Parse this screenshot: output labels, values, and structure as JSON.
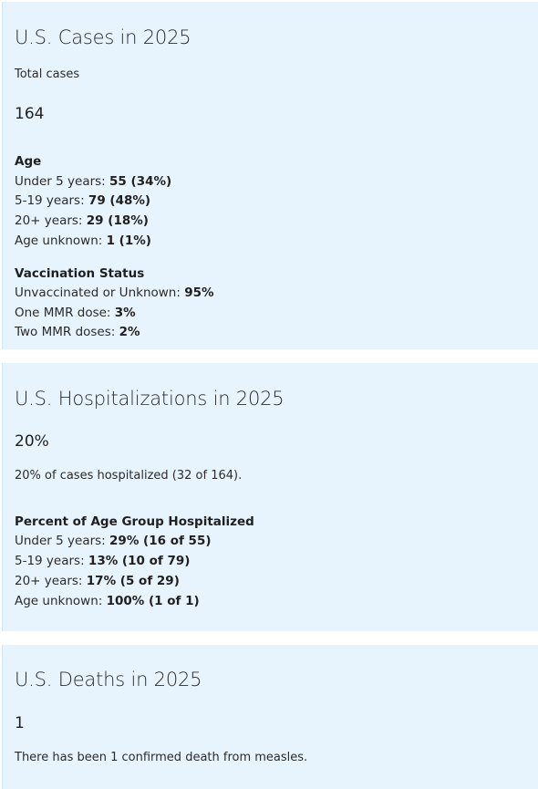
{
  "cases": {
    "title": "U.S. Cases in 2025",
    "total_label": "Total cases",
    "total_value": "164",
    "age": {
      "heading": "Age",
      "rows": [
        {
          "label": "Under 5 years: ",
          "value": "55 (34%)"
        },
        {
          "label": "5-19 years: ",
          "value": "79 (48%)"
        },
        {
          "label": "20+ years: ",
          "value": "29 (18%)"
        },
        {
          "label": "Age unknown: ",
          "value": "1 (1%)"
        }
      ]
    },
    "vaccination": {
      "heading": "Vaccination Status",
      "rows": [
        {
          "label": "Unvaccinated or Unknown: ",
          "value": "95%"
        },
        {
          "label": "One MMR dose: ",
          "value": "3%"
        },
        {
          "label": "Two MMR doses: ",
          "value": "2%"
        }
      ]
    }
  },
  "hospitalizations": {
    "title": "U.S. Hospitalizations in 2025",
    "percent": "20%",
    "description": "20% of cases hospitalized (32 of 164).",
    "age_group": {
      "heading": "Percent of Age Group Hospitalized",
      "rows": [
        {
          "label": "Under 5 years: ",
          "value": "29% (16 of 55)"
        },
        {
          "label": "5-19 years: ",
          "value": "13% (10 of 79)"
        },
        {
          "label": "20+ years: ",
          "value": "17% (5 of 29)"
        },
        {
          "label": "Age unknown: ",
          "value": "100% (1 of 1)"
        }
      ]
    }
  },
  "deaths": {
    "title": "U.S. Deaths in 2025",
    "count": "1",
    "description": "There has been 1 confirmed death from measles."
  }
}
